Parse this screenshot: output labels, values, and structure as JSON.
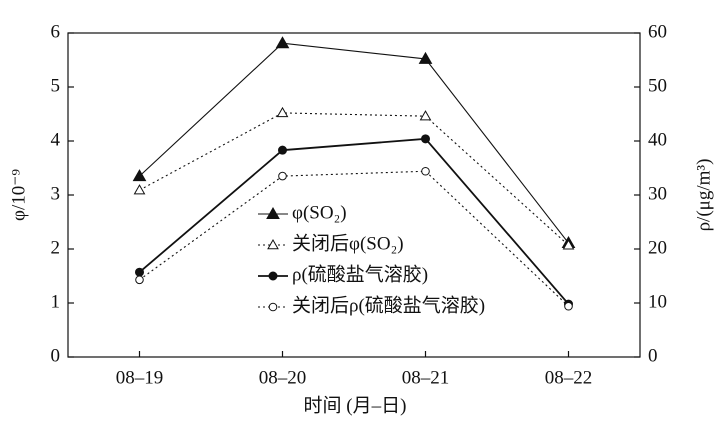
{
  "chart_data": {
    "type": "line",
    "xlabel": "时间 (月–日)",
    "ylabel": "φ/10⁻⁹",
    "y2label": "ρ/(μg/m³)",
    "categories": [
      "08–19",
      "08–20",
      "08–21",
      "08–22"
    ],
    "ylim": [
      0,
      6
    ],
    "yticks": [
      0,
      1,
      2,
      3,
      4,
      5,
      6
    ],
    "y2lim": [
      0,
      60
    ],
    "y2ticks": [
      0,
      10,
      20,
      30,
      40,
      50,
      60
    ],
    "legend": "center",
    "series": [
      {
        "name": "φ(SO₂)",
        "color": "#111111",
        "marker": "triangle",
        "filled": true,
        "line_style": "solid",
        "values": [
          3.35,
          5.81,
          5.52,
          2.11
        ]
      },
      {
        "name": "关闭后φ(SO₂)",
        "color": "#111111",
        "marker": "triangle",
        "filled": false,
        "line_style": "dotted",
        "values": [
          3.09,
          4.52,
          4.46,
          2.07
        ]
      },
      {
        "name": "ρ(硫酸盐气溶胶)",
        "color": "#111111",
        "marker": "circle",
        "filled": true,
        "line_style": "solid",
        "axis": "y2",
        "values": [
          15.7,
          38.3,
          40.4,
          9.8
        ]
      },
      {
        "name": "关闭后ρ(硫酸盐气溶胶)",
        "color": "#111111",
        "marker": "circle",
        "filled": false,
        "line_style": "dotted",
        "axis": "y2",
        "values": [
          14.3,
          33.5,
          34.4,
          9.4
        ]
      }
    ]
  }
}
